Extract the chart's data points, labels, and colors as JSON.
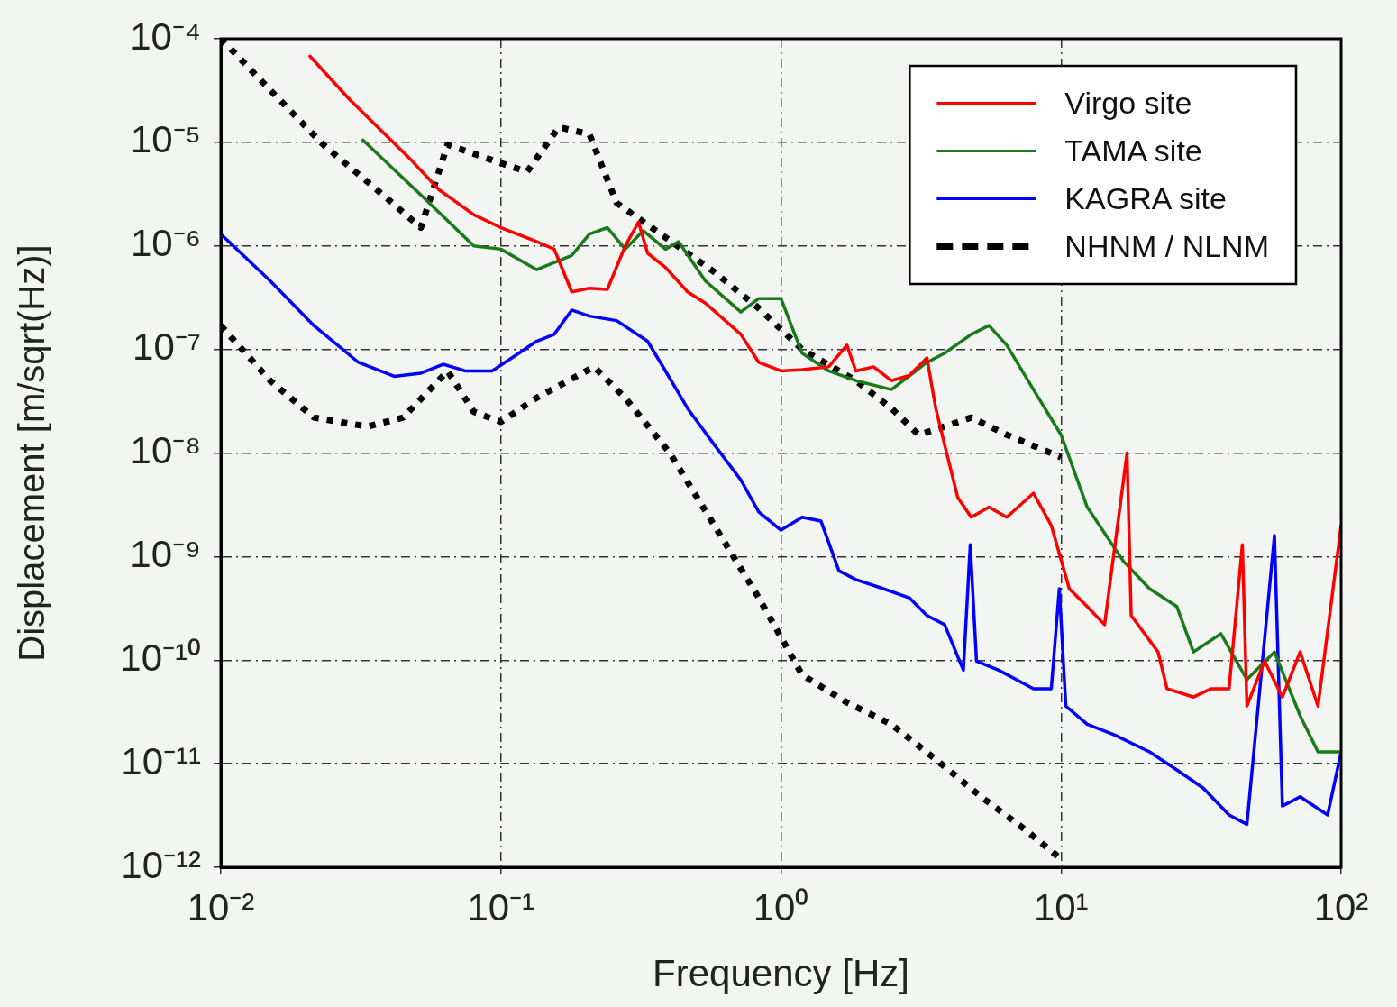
{
  "chart_data": {
    "type": "line",
    "xlabel": "Frequency [Hz]",
    "ylabel": "Displacement [m/sqrt(Hz)]",
    "log": "xy",
    "grid": true,
    "legend": "top right",
    "xlim": [
      0.01,
      100
    ],
    "ylim": [
      1e-12,
      0.0001
    ],
    "xticks": [
      {
        "value": 0.01,
        "label": "10⁻²"
      },
      {
        "value": 0.1,
        "label": "10⁻¹"
      },
      {
        "value": 1,
        "label": "10⁰"
      },
      {
        "value": 10,
        "label": "10¹"
      },
      {
        "value": 100,
        "label": "10²"
      }
    ],
    "yticks": [
      {
        "value": 1e-12,
        "label": "10⁻¹²"
      },
      {
        "value": 1e-11,
        "label": "10⁻¹¹"
      },
      {
        "value": 1e-10,
        "label": "10⁻¹⁰"
      },
      {
        "value": 1e-09,
        "label": "10⁻⁹"
      },
      {
        "value": 1e-08,
        "label": "10⁻⁸"
      },
      {
        "value": 1e-07,
        "label": "10⁻⁷"
      },
      {
        "value": 1e-06,
        "label": "10⁻⁶"
      },
      {
        "value": 1e-05,
        "label": "10⁻⁵"
      },
      {
        "value": 0.0001,
        "label": "10⁻⁴"
      }
    ],
    "series": [
      {
        "name": "Virgo site",
        "color": "#ff0000",
        "line_style": "solid",
        "x": [
          0.0208,
          0.0288,
          0.0482,
          0.06,
          0.08,
          0.1,
          0.134,
          0.155,
          0.179,
          0.207,
          0.24,
          0.278,
          0.31,
          0.334,
          0.387,
          0.464,
          0.537,
          0.719,
          0.833,
          1.0,
          1.19,
          1.48,
          1.72,
          1.85,
          2.14,
          2.48,
          2.87,
          3.32,
          3.57,
          3.84,
          4.28,
          4.78,
          5.53,
          6.4,
          7.97,
          9.23,
          10.7,
          12.4,
          14.3,
          17.2,
          17.8,
          22.2,
          23.9,
          29.7,
          34.4,
          39.8,
          44.4,
          46.1,
          53.3,
          61.7,
          71.4,
          82.7,
          100
        ],
        "values": [
          6.8e-05,
          2.6e-05,
          6.6e-06,
          3.5e-06,
          2e-06,
          1.5e-06,
          1.1e-06,
          9.3e-07,
          3.6e-07,
          3.9e-07,
          3.8e-07,
          1e-06,
          1.7e-06,
          8.5e-07,
          6.2e-07,
          3.6e-07,
          2.8e-07,
          1.4e-07,
          7.5e-08,
          6.2e-08,
          6.4e-08,
          6.8e-08,
          1.1e-07,
          6.2e-08,
          6.8e-08,
          5e-08,
          5.6e-08,
          8.3e-08,
          2.7e-08,
          1.2e-08,
          3.7e-09,
          2.4e-09,
          3e-09,
          2.4e-09,
          4.1e-09,
          2e-09,
          4.9e-10,
          3.3e-10,
          2.2e-10,
          1e-08,
          2.7e-10,
          1.2e-10,
          5.3e-11,
          4.4e-11,
          5.3e-11,
          5.3e-11,
          1.3e-09,
          3.6e-11,
          9.8e-11,
          4.4e-11,
          1.2e-10,
          3.6e-11,
          2e-09
        ]
      },
      {
        "name": "TAMA site",
        "color": "#1a7a1a",
        "line_style": "solid",
        "x": [
          0.0322,
          0.0518,
          0.08,
          0.1,
          0.134,
          0.179,
          0.207,
          0.24,
          0.278,
          0.322,
          0.387,
          0.431,
          0.537,
          0.719,
          0.833,
          1.0,
          1.19,
          1.48,
          1.85,
          2.48,
          3.32,
          3.84,
          4.78,
          5.53,
          6.4,
          7.97,
          10,
          12.4,
          16.7,
          20.7,
          25.9,
          29.7,
          37.2,
          46.1,
          57.8,
          71.4,
          82.7,
          100
        ],
        "values": [
          1.05e-05,
          3.1e-06,
          1e-06,
          9.3e-07,
          5.9e-07,
          8.1e-07,
          1.3e-06,
          1.5e-06,
          9.3e-07,
          1.4e-06,
          9.3e-07,
          1.1e-06,
          4.6e-07,
          2.3e-07,
          3.1e-07,
          3.1e-07,
          9.2e-08,
          6.2e-08,
          5e-08,
          4.1e-08,
          7.5e-08,
          9.2e-08,
          1.4e-07,
          1.7e-07,
          1.1e-07,
          4.1e-08,
          1.5e-08,
          3e-09,
          9e-10,
          4.9e-10,
          3.3e-10,
          1.2e-10,
          1.8e-10,
          6.5e-11,
          1.2e-10,
          2.9e-11,
          1.3e-11,
          1.3e-11
        ]
      },
      {
        "name": "KAGRA site",
        "color": "#0000ff",
        "line_style": "solid",
        "x": [
          0.01,
          0.015,
          0.0215,
          0.031,
          0.0416,
          0.0518,
          0.0622,
          0.0747,
          0.093,
          0.116,
          0.134,
          0.155,
          0.179,
          0.207,
          0.259,
          0.334,
          0.387,
          0.464,
          0.578,
          0.719,
          0.833,
          1.0,
          1.19,
          1.39,
          1.61,
          1.85,
          2.32,
          2.87,
          3.32,
          3.84,
          4.48,
          4.74,
          4.99,
          5.99,
          7.97,
          9.23,
          9.86,
          10.4,
          12.4,
          15.5,
          20.7,
          25.9,
          32.2,
          39.8,
          46.1,
          57.8,
          61.7,
          71.4,
          89.5,
          100
        ],
        "values": [
          1.3e-06,
          4.6e-07,
          1.7e-07,
          7.5e-08,
          5.5e-08,
          5.9e-08,
          7.2e-08,
          6.2e-08,
          6.2e-08,
          9.2e-08,
          1.2e-07,
          1.4e-07,
          2.4e-07,
          2.1e-07,
          1.9e-07,
          1.2e-07,
          6.2e-08,
          2.7e-08,
          1.2e-08,
          5.5e-09,
          2.7e-09,
          1.8e-09,
          2.4e-09,
          2.2e-09,
          7.3e-10,
          6e-10,
          4.9e-10,
          4e-10,
          2.7e-10,
          2.2e-10,
          8e-11,
          1.3e-09,
          9.8e-11,
          8e-11,
          5.3e-11,
          5.3e-11,
          4.9e-10,
          3.6e-11,
          2.4e-11,
          1.9e-11,
          1.3e-11,
          8.7e-12,
          5.8e-12,
          3.2e-12,
          2.6e-12,
          1.6e-09,
          3.9e-12,
          4.8e-12,
          3.2e-12,
          1.3e-11
        ]
      },
      {
        "name": "NHNM / NLNM",
        "color": "#000000",
        "line_style": "dotted",
        "x": [
          0.01,
          0.0104,
          0.015,
          0.0232,
          0.036,
          0.0518,
          0.0645,
          0.1,
          0.124,
          0.161,
          0.207,
          0.259,
          0.372,
          0.578,
          0.833,
          1.19,
          1.85,
          2.48,
          3.1,
          3.84,
          4.78,
          6.4,
          10
        ],
        "values": [
          0.0001,
          9e-05,
          3.2e-05,
          9.5e-06,
          3.5e-06,
          1.5e-06,
          9.5e-06,
          6.3e-06,
          5.2e-06,
          1.4e-05,
          1.2e-05,
          2.6e-06,
          1.3e-06,
          5.6e-07,
          2.5e-07,
          1e-07,
          5e-08,
          2.7e-08,
          1.5e-08,
          1.8e-08,
          2.2e-08,
          1.5e-08,
          9.1e-09
        ]
      },
      {
        "color": "#000000",
        "line_style": "dotted",
        "x": [
          0.01,
          0.015,
          0.0215,
          0.0334,
          0.0448,
          0.0645,
          0.08,
          0.1,
          0.134,
          0.215,
          0.278,
          0.401,
          0.578,
          0.833,
          1.19,
          1.72,
          2.48,
          3.57,
          5.18,
          7.46,
          10
        ],
        "values": [
          1.7e-07,
          5e-08,
          2.2e-08,
          1.8e-08,
          2.2e-08,
          6.2e-08,
          2.5e-08,
          2e-08,
          3.4e-08,
          6.8e-08,
          3.4e-08,
          1e-08,
          2e-09,
          4e-10,
          7.2e-11,
          3.9e-11,
          2.4e-11,
          1.1e-11,
          4.8e-12,
          2.3e-12,
          1.2e-12
        ]
      }
    ]
  }
}
